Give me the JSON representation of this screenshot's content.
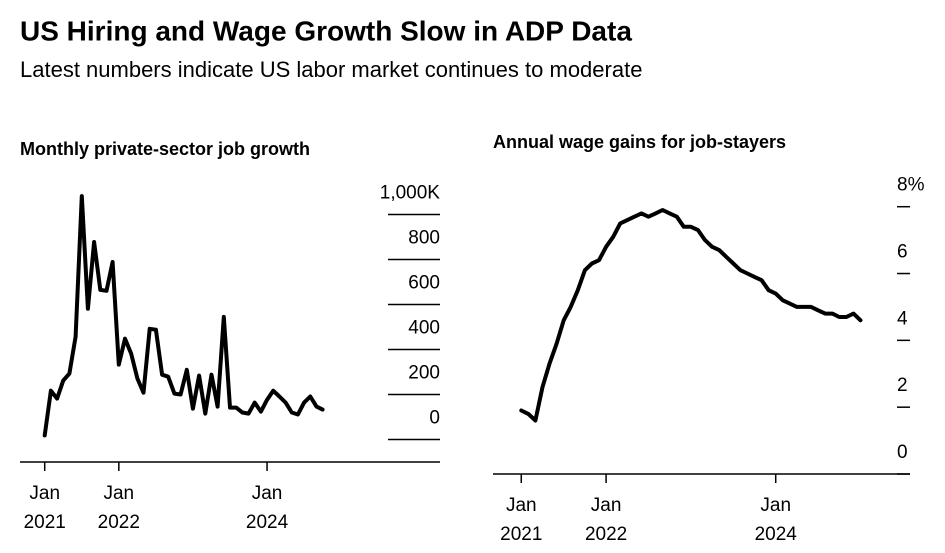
{
  "title": "US Hiring and Wage Growth Slow in ADP Data",
  "subtitle": "Latest numbers indicate US labor market continues to moderate",
  "chart_data": [
    {
      "type": "line",
      "title": "Monthly private-sector job growth",
      "color": "#000000",
      "x": [
        "2021-01",
        "2021-02",
        "2021-03",
        "2021-04",
        "2021-05",
        "2021-06",
        "2021-07",
        "2021-08",
        "2021-09",
        "2021-10",
        "2021-11",
        "2021-12",
        "2022-01",
        "2022-02",
        "2022-03",
        "2022-04",
        "2022-05",
        "2022-06",
        "2022-07",
        "2022-08",
        "2022-09",
        "2022-10",
        "2022-11",
        "2022-12",
        "2023-01",
        "2023-02",
        "2023-03",
        "2023-04",
        "2023-05",
        "2023-06",
        "2023-07",
        "2023-08",
        "2023-09",
        "2023-10",
        "2023-11",
        "2023-12",
        "2024-01",
        "2024-02",
        "2024-03",
        "2024-04",
        "2024-05",
        "2024-06",
        "2024-07",
        "2024-08",
        "2024-09",
        "2024-10"
      ],
      "values": [
        18,
        217,
        182,
        262,
        293,
        457,
        1082,
        581,
        878,
        665,
        661,
        789,
        333,
        448,
        381,
        271,
        208,
        492,
        488,
        288,
        279,
        204,
        200,
        310,
        137,
        284,
        115,
        288,
        146,
        545,
        142,
        142,
        120,
        115,
        164,
        124,
        177,
        217,
        191,
        164,
        120,
        111,
        164,
        191,
        146,
        133
      ],
      "xlim": [
        "2020-09",
        "2026-05"
      ],
      "xticks": [
        {
          "value": "2021-01",
          "label": "Jan 2021"
        },
        {
          "value": "2022-01",
          "label": "Jan 2022"
        },
        {
          "value": "2024-01",
          "label": "Jan 2024"
        }
      ],
      "ylim": [
        -100,
        1100
      ],
      "yticks": [
        0,
        200,
        400,
        600,
        800,
        {
          "value": 1000,
          "label": "1,000K"
        }
      ],
      "grid": true
    },
    {
      "type": "line",
      "title": "Annual wage gains for job-stayers",
      "color": "#000000",
      "x": [
        "2021-01",
        "2021-02",
        "2021-03",
        "2021-04",
        "2021-05",
        "2021-06",
        "2021-07",
        "2021-08",
        "2021-09",
        "2021-10",
        "2021-11",
        "2021-12",
        "2022-01",
        "2022-02",
        "2022-03",
        "2022-04",
        "2022-05",
        "2022-06",
        "2022-07",
        "2022-08",
        "2022-09",
        "2022-10",
        "2022-11",
        "2022-12",
        "2023-01",
        "2023-02",
        "2023-03",
        "2023-04",
        "2023-05",
        "2023-06",
        "2023-07",
        "2023-08",
        "2023-09",
        "2023-10",
        "2023-11",
        "2023-12",
        "2024-01",
        "2024-02",
        "2024-03",
        "2024-04",
        "2024-05",
        "2024-06",
        "2024-07",
        "2024-08",
        "2024-09",
        "2024-10",
        "2024-11",
        "2024-12",
        "2025-01"
      ],
      "values": [
        1.9,
        1.8,
        1.6,
        2.6,
        3.3,
        3.9,
        4.6,
        5.0,
        5.5,
        6.1,
        6.3,
        6.4,
        6.8,
        7.1,
        7.5,
        7.6,
        7.7,
        7.8,
        7.7,
        7.8,
        7.9,
        7.8,
        7.7,
        7.4,
        7.4,
        7.3,
        7.0,
        6.8,
        6.7,
        6.5,
        6.3,
        6.1,
        6.0,
        5.9,
        5.8,
        5.5,
        5.4,
        5.2,
        5.1,
        5.0,
        5.0,
        5.0,
        4.9,
        4.8,
        4.8,
        4.7,
        4.7,
        4.8,
        4.6
      ],
      "xlim": [
        "2020-09",
        "2025-08"
      ],
      "xticks": [
        {
          "value": "2021-01",
          "label": "Jan 2021"
        },
        {
          "value": "2022-01",
          "label": "Jan 2022"
        },
        {
          "value": "2024-01",
          "label": "Jan 2024"
        }
      ],
      "ylim": [
        0,
        8.5
      ],
      "yticks": [
        0,
        2,
        4,
        6,
        {
          "value": 8,
          "label": "8%"
        }
      ],
      "grid": true
    }
  ]
}
